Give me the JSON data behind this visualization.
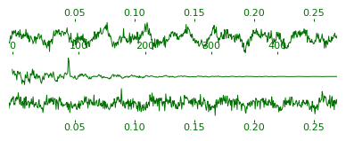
{
  "line_color": "#007000",
  "line_width": 0.7,
  "background_color": "#ffffff",
  "plot1": {
    "x_ticks": [
      0.05,
      0.1,
      0.15,
      0.2,
      0.25
    ],
    "x_tick_labels": [
      "0.05",
      "0.10",
      "0.15",
      "0.20",
      "0.25"
    ],
    "x_lim": [
      -0.005,
      0.27
    ],
    "n_points": 600,
    "seed": 42
  },
  "plot2": {
    "x_ticks": [
      0,
      100,
      200,
      300,
      400
    ],
    "x_tick_labels": [
      "0",
      "100",
      "200",
      "300",
      "400"
    ],
    "x_lim": [
      -5,
      490
    ],
    "n_points": 500,
    "seed": 7
  },
  "plot3": {
    "x_ticks": [
      0.05,
      0.1,
      0.15,
      0.2,
      0.25
    ],
    "x_tick_labels": [
      "0.05",
      "0.10",
      "0.15",
      "0.20",
      "0.25"
    ],
    "x_lim": [
      -0.005,
      0.27
    ],
    "n_points": 600,
    "seed": 13
  },
  "tick_fontsize": 8,
  "tick_color": "#007000"
}
